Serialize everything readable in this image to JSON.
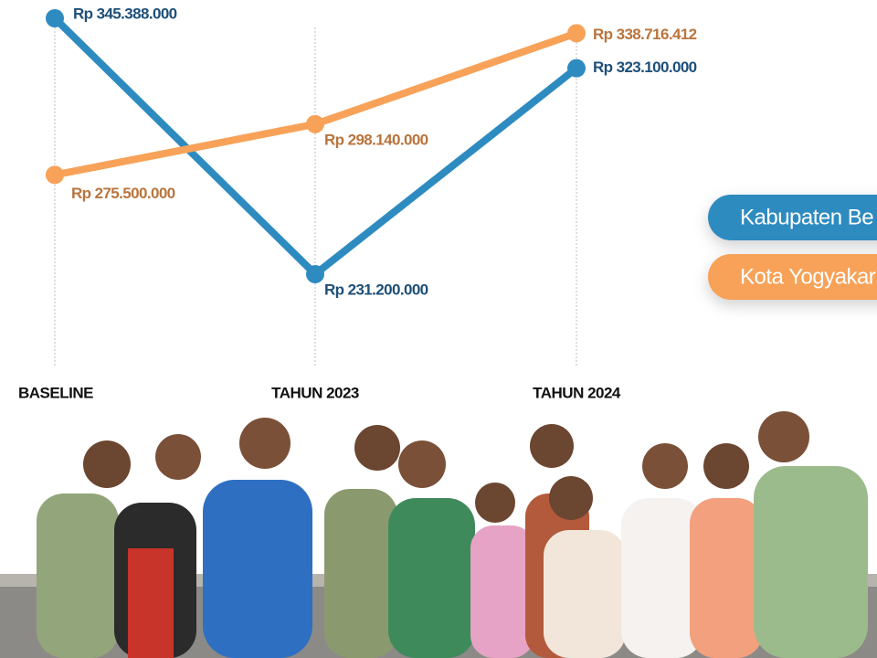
{
  "chart_data": {
    "type": "line",
    "categories": [
      "BASELINE",
      "TAHUN 2023",
      "TAHUN 2024"
    ],
    "series": [
      {
        "name": "Kabupaten Be",
        "color": "#2e8bc0",
        "label_color": "#1d4f78",
        "values": [
          345388000,
          231200000,
          323100000
        ],
        "value_labels": [
          "Rp 345.388.000",
          "Rp 231.200.000",
          "Rp 323.100.000"
        ]
      },
      {
        "name": "Kota Yogyakar",
        "color": "#f7a258",
        "label_color": "#b9743c",
        "values": [
          275500000,
          298140000,
          338716412
        ],
        "value_labels": [
          "Rp 275.500.000",
          "Rp 298.140.000",
          "Rp 338.716.412"
        ]
      }
    ]
  }
}
